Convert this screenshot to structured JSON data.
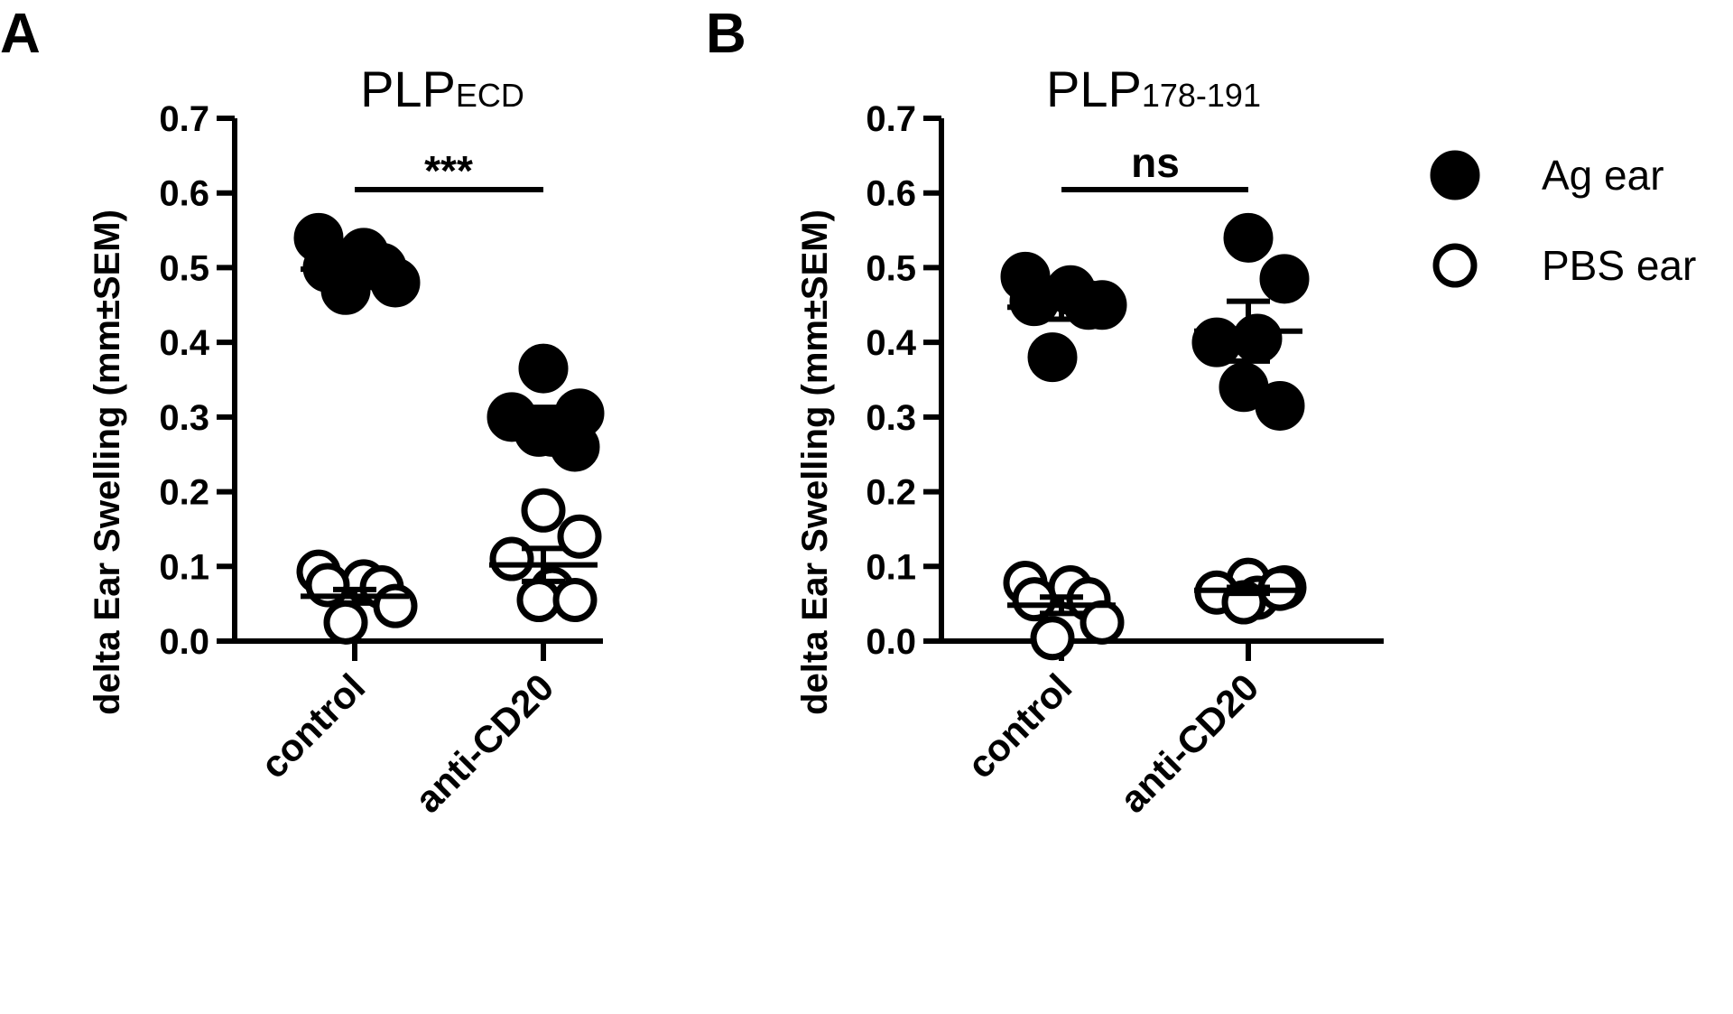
{
  "chart_data": [
    {
      "type": "scatter",
      "panel": "A",
      "title": "PLP",
      "title_subscript": "ECD",
      "ylabel": "delta Ear Swelling (mm±SEM)",
      "ylim": [
        0,
        0.7
      ],
      "yticks": [
        "0.0",
        "0.1",
        "0.2",
        "0.3",
        "0.4",
        "0.5",
        "0.6",
        "0.7"
      ],
      "categories": [
        "control",
        "anti-CD20"
      ],
      "significance": "***",
      "series": [
        {
          "name": "Ag ear",
          "marker": "filled",
          "groups": [
            {
              "category": "control",
              "values": [
                0.54,
                0.52,
                0.5,
                0.5,
                0.48,
                0.47
              ],
              "mean": 0.498,
              "sem": 0.012
            },
            {
              "category": "anti-CD20",
              "values": [
                0.365,
                0.305,
                0.3,
                0.28,
                0.28,
                0.26
              ],
              "mean": 0.297,
              "sem": 0.016
            }
          ]
        },
        {
          "name": "PBS ear",
          "marker": "open",
          "groups": [
            {
              "category": "control",
              "values": [
                0.093,
                0.08,
                0.075,
                0.072,
                0.047,
                0.025
              ],
              "mean": 0.06,
              "sem": 0.009
            },
            {
              "category": "anti-CD20",
              "values": [
                0.175,
                0.14,
                0.11,
                0.07,
                0.055,
                0.055
              ],
              "mean": 0.102,
              "sem": 0.022
            }
          ]
        }
      ]
    },
    {
      "type": "scatter",
      "panel": "B",
      "title": "PLP",
      "title_subscript": "178-191",
      "ylabel": "delta Ear Swelling (mm±SEM)",
      "ylim": [
        0,
        0.7
      ],
      "yticks": [
        "0.0",
        "0.1",
        "0.2",
        "0.3",
        "0.4",
        "0.5",
        "0.6",
        "0.7"
      ],
      "categories": [
        "control",
        "anti-CD20"
      ],
      "significance": "ns",
      "series": [
        {
          "name": "Ag ear",
          "marker": "filled",
          "groups": [
            {
              "category": "control",
              "values": [
                0.488,
                0.47,
                0.455,
                0.45,
                0.45,
                0.38
              ],
              "mean": 0.447,
              "sem": 0.016
            },
            {
              "category": "anti-CD20",
              "values": [
                0.54,
                0.485,
                0.4,
                0.405,
                0.34,
                0.315
              ],
              "mean": 0.415,
              "sem": 0.04
            }
          ]
        },
        {
          "name": "PBS ear",
          "marker": "open",
          "groups": [
            {
              "category": "control",
              "values": [
                0.078,
                0.072,
                0.056,
                0.056,
                0.025,
                0.004
              ],
              "mean": 0.048,
              "sem": 0.011
            },
            {
              "category": "anti-CD20",
              "values": [
                0.082,
                0.072,
                0.065,
                0.058,
                0.052,
                0.07
              ],
              "mean": 0.068,
              "sem": 0.004
            }
          ]
        }
      ]
    }
  ],
  "legend": [
    {
      "label": "Ag ear",
      "marker": "filled"
    },
    {
      "label": "PBS ear",
      "marker": "open"
    }
  ],
  "legend_position": "right",
  "colors": {
    "ink": "#000000",
    "background": "#ffffff"
  }
}
